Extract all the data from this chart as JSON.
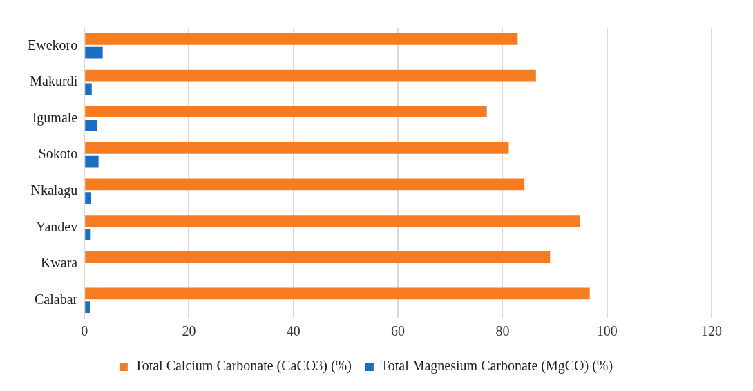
{
  "chart_data": {
    "type": "bar",
    "orientation": "horizontal",
    "categories": [
      "Ewekoro",
      "Makurdi",
      "Igumale",
      "Sokoto",
      "Nkalagu",
      "Yandev",
      "Kwara",
      "Calabar"
    ],
    "series": [
      {
        "name": "Total Calcium Carbonate (CaCO3) (%)",
        "color": "#f57c20",
        "values": [
          82.9,
          86.4,
          77.0,
          81.2,
          84.2,
          94.8,
          89.1,
          96.7
        ]
      },
      {
        "name": "Total Magnesium Carbonate (MgCO) (%)",
        "color": "#1b6ec2",
        "values": [
          3.5,
          1.4,
          2.4,
          2.7,
          1.3,
          1.2,
          null,
          1.1
        ]
      }
    ],
    "xlim": [
      0,
      120
    ],
    "xticks": [
      0,
      20,
      40,
      60,
      80,
      100,
      120
    ],
    "grid": "x",
    "legend": "bottom"
  }
}
